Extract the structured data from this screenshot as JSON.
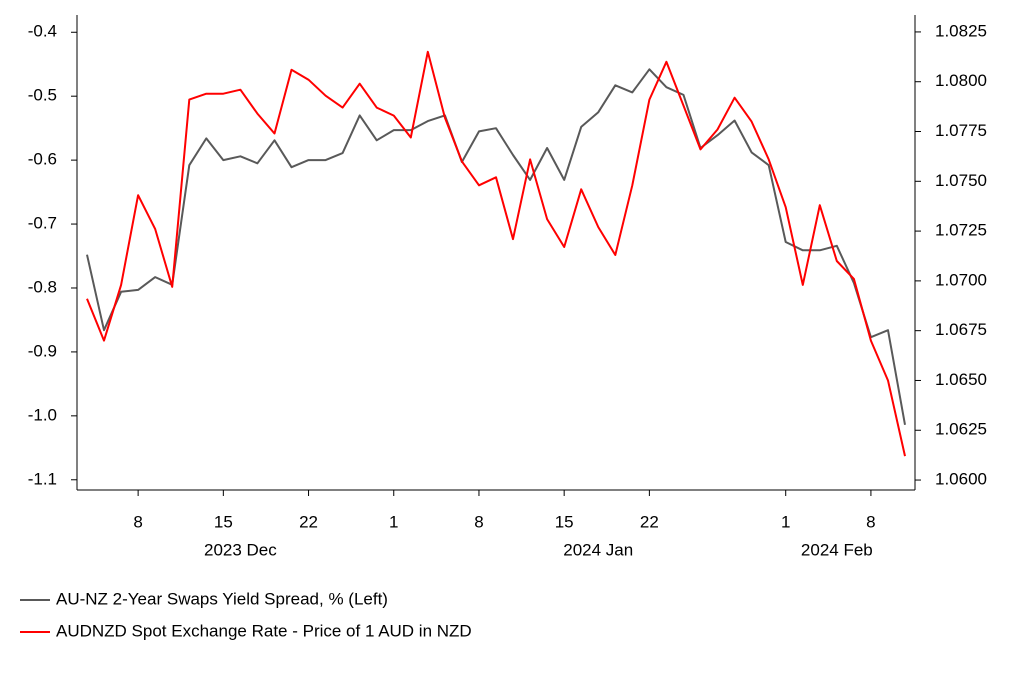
{
  "chart_data": {
    "type": "line",
    "x": [
      "2023-12-05",
      "2023-12-06",
      "2023-12-07",
      "2023-12-08",
      "2023-12-11",
      "2023-12-12",
      "2023-12-13",
      "2023-12-14",
      "2023-12-15",
      "2023-12-18",
      "2023-12-19",
      "2023-12-20",
      "2023-12-21",
      "2023-12-22",
      "2023-12-26",
      "2023-12-27",
      "2023-12-28",
      "2023-12-29",
      "2024-01-01",
      "2024-01-02",
      "2024-01-03",
      "2024-01-04",
      "2024-01-05",
      "2024-01-08",
      "2024-01-09",
      "2024-01-10",
      "2024-01-11",
      "2024-01-12",
      "2024-01-15",
      "2024-01-16",
      "2024-01-17",
      "2024-01-18",
      "2024-01-19",
      "2024-01-22",
      "2024-01-23",
      "2024-01-24",
      "2024-01-25",
      "2024-01-26",
      "2024-01-29",
      "2024-01-30",
      "2024-01-31",
      "2024-02-01",
      "2024-02-02",
      "2024-02-05",
      "2024-02-06",
      "2024-02-07",
      "2024-02-08",
      "2024-02-09",
      "2024-02-12"
    ],
    "series": [
      {
        "name": "AU-NZ 2-Year Swaps Yield Spread, % (Left)",
        "color": "#595959",
        "axis": "y",
        "values": [
          -0.748,
          -0.866,
          -0.806,
          -0.803,
          -0.783,
          -0.795,
          -0.608,
          -0.566,
          -0.6,
          -0.594,
          -0.605,
          -0.569,
          -0.611,
          -0.6,
          -0.6,
          -0.589,
          -0.53,
          -0.569,
          -0.553,
          -0.553,
          -0.539,
          -0.53,
          -0.603,
          -0.555,
          -0.55,
          -0.592,
          -0.631,
          -0.581,
          -0.631,
          -0.548,
          -0.525,
          -0.483,
          -0.494,
          -0.458,
          -0.486,
          -0.498,
          -0.581,
          -0.561,
          -0.538,
          -0.588,
          -0.608,
          -0.728,
          -0.741,
          -0.741,
          -0.734,
          -0.792,
          -0.877,
          -0.866,
          -1.014
        ]
      },
      {
        "name": "AUDNZD Spot Exchange Rate - Price of 1 AUD in NZD",
        "color": "#ff0000",
        "axis": "y2",
        "values": [
          1.0691,
          1.067,
          1.0698,
          1.0743,
          1.0726,
          1.0697,
          1.0791,
          1.0794,
          1.0794,
          1.0796,
          1.0784,
          1.0774,
          1.0806,
          1.0801,
          1.0793,
          1.0787,
          1.0799,
          1.0787,
          1.0783,
          1.0772,
          1.0815,
          1.0782,
          1.076,
          1.0748,
          1.0752,
          1.0721,
          1.0761,
          1.0731,
          1.0717,
          1.0746,
          1.0727,
          1.0713,
          1.0748,
          1.0791,
          1.081,
          1.0788,
          1.0766,
          1.0776,
          1.0792,
          1.078,
          1.0761,
          1.0737,
          1.0698,
          1.0738,
          1.071,
          1.0701,
          1.067,
          1.065,
          1.0612
        ]
      }
    ],
    "ylim": [
      -1.116,
      -0.373
    ],
    "yticks": [
      -0.4,
      -0.5,
      -0.6,
      -0.7,
      -0.8,
      -0.9,
      {
        "value": -1,
        "label": "-1.0"
      },
      -1.1
    ],
    "y2lim": [
      1.0595,
      1.08335
    ],
    "y2ticks": [
      1.0825,
      {
        "value": 1.08,
        "label": "1.0800"
      },
      1.0775,
      {
        "value": 1.075,
        "label": "1.0750"
      },
      1.0725,
      {
        "value": 1.07,
        "label": "1.0700"
      },
      1.0675,
      {
        "value": 1.065,
        "label": "1.0650"
      },
      1.0625,
      {
        "value": 1.06,
        "label": "1.0600"
      }
    ],
    "xticks": [
      {
        "value": "2023-12-08",
        "label": "8"
      },
      {
        "value": "2023-12-15",
        "label": "15"
      },
      {
        "value": "2023-12-22",
        "label": "22"
      },
      {
        "value": "2024-01-01",
        "label": "1"
      },
      {
        "value": "2024-01-08",
        "label": "8"
      },
      {
        "value": "2024-01-15",
        "label": "15"
      },
      {
        "value": "2024-01-22",
        "label": "22"
      },
      {
        "value": "2024-02-01",
        "label": "1"
      },
      {
        "value": "2024-02-08",
        "label": "8"
      }
    ],
    "xgroups": [
      {
        "value": "2023-12-18",
        "label": "2023 Dec"
      },
      {
        "value": "2024-01-17",
        "label": "2024 Jan"
      },
      {
        "value": "2024-02-06",
        "label": "2024 Feb"
      }
    ],
    "grid": false,
    "legend": "bottom"
  }
}
